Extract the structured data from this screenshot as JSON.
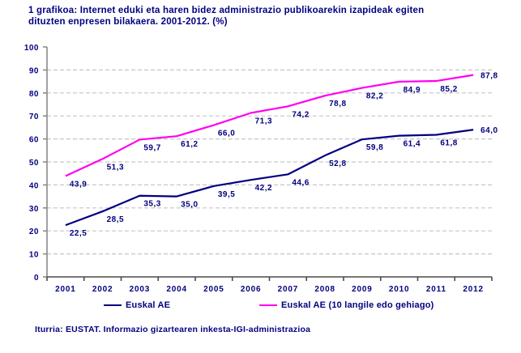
{
  "title": {
    "line1": "1 grafikoa: Internet eduki eta haren bidez administrazio publikoarekin izapideak egiten",
    "line2": "dituzten enpresen bilakaera. 2001-2012. (%)"
  },
  "footer": {
    "source": "Iturria: EUSTAT. Informazio gizartearen inkesta-IGI-administrazioa"
  },
  "colors": {
    "text": "#000080",
    "y_axis": "#8a8a8a",
    "x_axis": "#4a4a4a",
    "gridline": "#c6c6c6",
    "background": "#ffffff"
  },
  "chart_data": {
    "type": "line",
    "title": "1 grafikoa: Internet eduki eta haren bidez administrazio publikoarekin izapideak egiten dituzten enpresen bilakaera. 2001-2012. (%)",
    "categories": [
      "2001",
      "2002",
      "2003",
      "2004",
      "2005",
      "2006",
      "2007",
      "2008",
      "2009",
      "2010",
      "2011",
      "2012"
    ],
    "series": [
      {
        "name": "Euskal AE",
        "color": "#000080",
        "values": [
          22.5,
          28.5,
          35.3,
          35.0,
          39.5,
          42.2,
          44.6,
          52.8,
          59.8,
          61.4,
          61.8,
          64.0
        ],
        "labels": [
          "22,5",
          "28,5",
          "35,3",
          "35,0",
          "39,5",
          "42,2",
          "44,6",
          "52,8",
          "59,8",
          "61,4",
          "61,8",
          "64,0"
        ]
      },
      {
        "name": "Euskal AE (10 langile edo gehiago)",
        "color": "#ff00f0",
        "values": [
          43.9,
          51.3,
          59.7,
          61.2,
          66.0,
          71.3,
          74.2,
          78.8,
          82.2,
          84.9,
          85.2,
          87.8
        ],
        "labels": [
          "43,9",
          "51,3",
          "59,7",
          "61,2",
          "66,0",
          "71,3",
          "74,2",
          "78,8",
          "82,2",
          "84,9",
          "85,2",
          "87,8"
        ]
      }
    ],
    "xlabel": "",
    "ylabel": "",
    "ylim": [
      0,
      100
    ],
    "ytick_step": 10,
    "ytick_labels": [
      "0",
      "10",
      "20",
      "30",
      "40",
      "50",
      "60",
      "70",
      "80",
      "90",
      "100"
    ],
    "grid": "horizontal-dashed",
    "legend_position": "bottom",
    "data_labels": true,
    "decimal_separator": ","
  }
}
